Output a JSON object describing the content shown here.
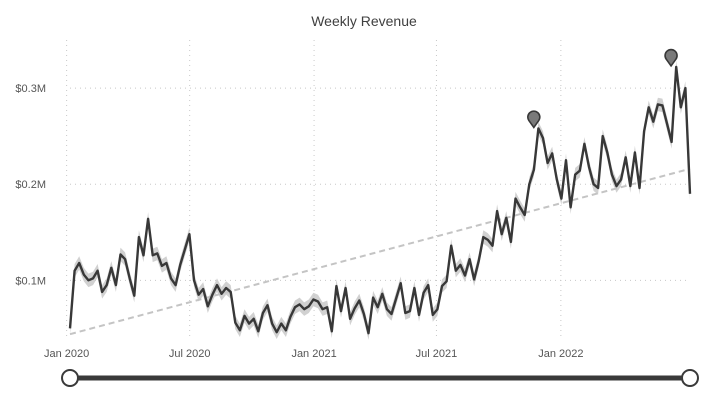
{
  "chart_data": {
    "type": "line",
    "title": "Weekly Revenue",
    "xlabel": "",
    "ylabel": "",
    "x_tick_labels": [
      "Jan 2020",
      "Jul 2020",
      "Jan 2021",
      "Jul 2021",
      "Jan 2022"
    ],
    "y_tick_labels": [
      "$0.1M",
      "$0.2M",
      "$0.3M"
    ],
    "y_ticks": [
      100000,
      200000,
      300000
    ],
    "ylim": [
      40000,
      350000
    ],
    "x_start_date": "2020-01-06",
    "x_end_date": "2022-07-11",
    "grid": true,
    "legend": "none",
    "series": [
      {
        "values": [
          50000,
          110000,
          118000,
          106000,
          100000,
          102000,
          110000,
          88000,
          95000,
          113000,
          95000,
          127000,
          122000,
          102000,
          84000,
          145000,
          126000,
          164000,
          126000,
          128000,
          115000,
          118000,
          102000,
          95000,
          116000,
          132000,
          148000,
          100000,
          85000,
          91000,
          73000,
          85000,
          95000,
          86000,
          92000,
          88000,
          56000,
          48000,
          63000,
          55000,
          60000,
          47000,
          66000,
          74000,
          55000,
          46000,
          55000,
          48000,
          62000,
          72000,
          75000,
          70000,
          73000,
          80000,
          78000,
          70000,
          72000,
          47000,
          94000,
          68000,
          92000,
          60000,
          71000,
          79000,
          65000,
          45000,
          82000,
          72000,
          86000,
          70000,
          65000,
          81000,
          97000,
          66000,
          68000,
          92000,
          64000,
          87000,
          95000,
          64000,
          70000,
          94000,
          99000,
          136000,
          110000,
          116000,
          105000,
          122000,
          101000,
          120000,
          145000,
          142000,
          136000,
          172000,
          148000,
          165000,
          140000,
          185000,
          176000,
          168000,
          200000,
          215000,
          258000,
          248000,
          222000,
          232000,
          205000,
          185000,
          225000,
          176000,
          210000,
          214000,
          242000,
          218000,
          200000,
          196000,
          250000,
          233000,
          210000,
          198000,
          205000,
          228000,
          198000,
          233000,
          196000,
          255000,
          280000,
          265000,
          283000,
          282000,
          263000,
          244000,
          322000,
          280000,
          300000,
          190000
        ],
        "band_halfwidth": 7000
      }
    ],
    "trendline": {
      "start": 44000,
      "end": 216000
    },
    "markers": [
      {
        "date": "2021-11-22",
        "value": 258000
      },
      {
        "date": "2022-06-13",
        "value": 322000
      }
    ],
    "colors": {
      "line": "#383838",
      "band": "#c9c9c9",
      "trend": "#c4c4c4",
      "marker": "#7a7a7a"
    }
  },
  "slider": {
    "start_value": 0,
    "end_value": 1
  }
}
